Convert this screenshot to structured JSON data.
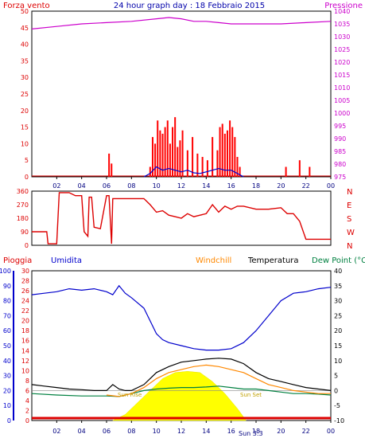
{
  "header": {
    "title": "24 hour graph day : 18 Febbraio 2015",
    "left_label": "Forza vento",
    "right_label": "Pressione"
  },
  "colors": {
    "wind": "#ff0000",
    "gust": "#ff0000",
    "avg_wind": "#0000cc",
    "pressure": "#cc00cc",
    "direction": "#dd0000",
    "humidity": "#0000cc",
    "temperature": "#000000",
    "windchill": "#ff8800",
    "dew_point": "#008040",
    "solar": "#ffff00",
    "rain": "#dd0000",
    "panel_bg": "#ffffff",
    "frame": "#000000"
  },
  "chart_data": [
    {
      "type": "bar",
      "name": "wind-panel",
      "y_left": {
        "label": "Forza vento",
        "ylim": [
          0,
          50
        ],
        "ticks": [
          0,
          5,
          10,
          15,
          20,
          25,
          30,
          35,
          40,
          45,
          50
        ]
      },
      "y_right": {
        "label": "Pressione",
        "ylim": [
          975,
          1040
        ],
        "ticks": [
          975,
          980,
          985,
          990,
          995,
          1000,
          1005,
          1010,
          1015,
          1020,
          1025,
          1030,
          1035,
          1040
        ]
      },
      "x_ticks": [
        "02",
        "04",
        "06",
        "08",
        "10",
        "12",
        "14",
        "16",
        "18",
        "20",
        "22",
        "00"
      ],
      "pressure": {
        "x": [
          0,
          2,
          4,
          6,
          8,
          10,
          11,
          12,
          13,
          14,
          15,
          16,
          18,
          20,
          22,
          24
        ],
        "y": [
          1033,
          1034,
          1035,
          1035.5,
          1036,
          1037,
          1037.5,
          1037,
          1036,
          1036,
          1035.5,
          1035,
          1035,
          1035,
          1035.5,
          1036
        ]
      },
      "gusts": {
        "x": [
          6.2,
          6.4,
          9.5,
          9.7,
          9.9,
          10.1,
          10.3,
          10.5,
          10.7,
          10.9,
          11.1,
          11.3,
          11.5,
          11.7,
          11.9,
          12.1,
          12.5,
          12.9,
          13.3,
          13.7,
          14.1,
          14.5,
          14.9,
          15.1,
          15.3,
          15.5,
          15.7,
          15.9,
          16.1,
          16.3,
          16.5,
          16.7,
          20.4,
          21.5,
          22.3
        ],
        "y": [
          7,
          4,
          3,
          12,
          10,
          17,
          14,
          13,
          15,
          17,
          10,
          15,
          18,
          9,
          11,
          14,
          8,
          12,
          7,
          6,
          5,
          12,
          8,
          15,
          16,
          13,
          14,
          17,
          15,
          12,
          6,
          3,
          3,
          5,
          3
        ]
      },
      "avg_wind": {
        "x": [
          9,
          9.5,
          10,
          10.5,
          11,
          11.5,
          12,
          12.5,
          13,
          13.5,
          14,
          14.5,
          15,
          15.5,
          16,
          16.5,
          17
        ],
        "y": [
          0,
          1,
          3,
          2,
          2.5,
          2,
          1.5,
          2,
          1.2,
          1,
          1.5,
          2,
          2.5,
          2,
          2,
          1,
          0
        ]
      }
    },
    {
      "type": "line",
      "name": "direction-panel",
      "y_left": {
        "ticks": [
          0,
          90,
          180,
          270,
          360
        ],
        "ylim": [
          0,
          360
        ]
      },
      "y_right": {
        "ticks": [
          "N",
          "W",
          "S",
          "E",
          "N"
        ]
      },
      "x": [
        0,
        1.2,
        1.3,
        2,
        2.2,
        3,
        3.5,
        4,
        4.2,
        4.5,
        4.6,
        4.8,
        5,
        5.5,
        6,
        6.2,
        6.4,
        6.5,
        7,
        8,
        9,
        9.5,
        10,
        10.5,
        11,
        11.5,
        12,
        12.5,
        13,
        13.5,
        14,
        14.5,
        15,
        15.5,
        16,
        16.5,
        17,
        18,
        19,
        20,
        20.5,
        21,
        21.5,
        22,
        23,
        24
      ],
      "y": [
        90,
        90,
        10,
        10,
        350,
        350,
        330,
        330,
        90,
        60,
        320,
        320,
        120,
        110,
        330,
        330,
        10,
        310,
        310,
        310,
        310,
        270,
        220,
        230,
        200,
        190,
        180,
        210,
        190,
        200,
        210,
        270,
        220,
        260,
        240,
        260,
        260,
        240,
        240,
        250,
        210,
        210,
        160,
        40,
        40,
        40
      ]
    },
    {
      "type": "line",
      "name": "weather-panel",
      "header_labels": {
        "rain": "Pioggia",
        "humidity": "Umidita",
        "windchill": "Windchill",
        "temperature": "Temperatura",
        "dew_point": "Dew Point (°C"
      },
      "y_humidity": {
        "ticks": [
          0,
          10,
          20,
          30,
          40,
          50,
          60,
          70,
          80,
          90,
          100
        ],
        "ylim": [
          0,
          100
        ]
      },
      "y_rain": {
        "ticks": [
          0,
          2,
          4,
          6,
          8,
          10,
          12,
          14,
          16,
          18,
          20,
          22,
          24,
          26,
          28,
          30
        ],
        "ylim": [
          0,
          30
        ]
      },
      "y_temp": {
        "ticks": [
          -10,
          -5,
          0,
          5,
          10,
          15,
          20,
          25,
          30,
          35,
          40
        ],
        "ylim": [
          -10,
          40
        ]
      },
      "x_ticks": [
        "02",
        "04",
        "06",
        "08",
        "10",
        "12",
        "14",
        "16",
        "18",
        "20",
        "22",
        "00"
      ],
      "annotations": {
        "sunrise": "Sun Rise",
        "sunset": "Sun Set",
        "sun_time": "Sun 3:3"
      },
      "humidity": {
        "x": [
          0,
          1,
          2,
          3,
          4,
          5,
          6,
          6.5,
          7,
          7.5,
          8,
          9,
          10,
          10.5,
          11,
          12,
          13,
          14,
          15,
          16,
          17,
          18,
          19,
          20,
          21,
          22,
          23,
          24
        ],
        "y": [
          84,
          85,
          86,
          88,
          87,
          88,
          86,
          84,
          90,
          85,
          82,
          75,
          58,
          54,
          52,
          50,
          48,
          47,
          47,
          48,
          52,
          60,
          70,
          80,
          85,
          86,
          88,
          89
        ]
      },
      "temperature": {
        "x": [
          0,
          1,
          2,
          3,
          4,
          5,
          6,
          6.5,
          7,
          7.5,
          8,
          9,
          10,
          11,
          12,
          13,
          14,
          15,
          16,
          17,
          18,
          19,
          20,
          21,
          22,
          23,
          24
        ],
        "y": [
          2,
          1.5,
          1,
          0.5,
          0.3,
          0,
          0,
          2,
          0.5,
          0,
          0,
          2,
          6,
          8,
          9.5,
          10,
          10.5,
          10.8,
          10.5,
          9,
          6,
          4,
          3,
          2,
          1,
          0.5,
          0
        ]
      },
      "windchill": {
        "x": [
          6,
          7,
          8,
          9,
          10,
          11,
          12,
          13,
          14,
          15,
          16,
          17,
          18,
          19,
          20,
          21,
          22,
          23,
          24
        ],
        "y": [
          -1.5,
          -2,
          -1,
          1,
          4,
          6,
          7,
          8,
          8.5,
          8,
          7,
          6,
          4,
          2,
          1,
          0,
          -0.5,
          -1,
          -1
        ]
      },
      "dew_point": {
        "x": [
          0,
          2,
          4,
          6,
          7,
          8,
          9,
          10,
          11,
          12,
          13,
          14,
          15,
          16,
          17,
          18,
          19,
          20,
          21,
          22,
          23,
          24
        ],
        "y": [
          -1,
          -1.5,
          -1.8,
          -1.8,
          -2,
          -1,
          0,
          0.5,
          0.8,
          1,
          1,
          1.2,
          1.5,
          1,
          0.5,
          0.5,
          0,
          -0.5,
          -1,
          -1,
          -1.2,
          -1.5
        ]
      },
      "solar": {
        "x": [
          6.5,
          7.5,
          8.5,
          9.5,
          10.5,
          11.5,
          12.5,
          13.5,
          14.5,
          15.5,
          16.5,
          17.2
        ],
        "y": [
          0,
          1,
          3,
          5,
          7,
          8,
          8.2,
          8,
          6.5,
          4.5,
          2,
          0
        ]
      }
    }
  ]
}
